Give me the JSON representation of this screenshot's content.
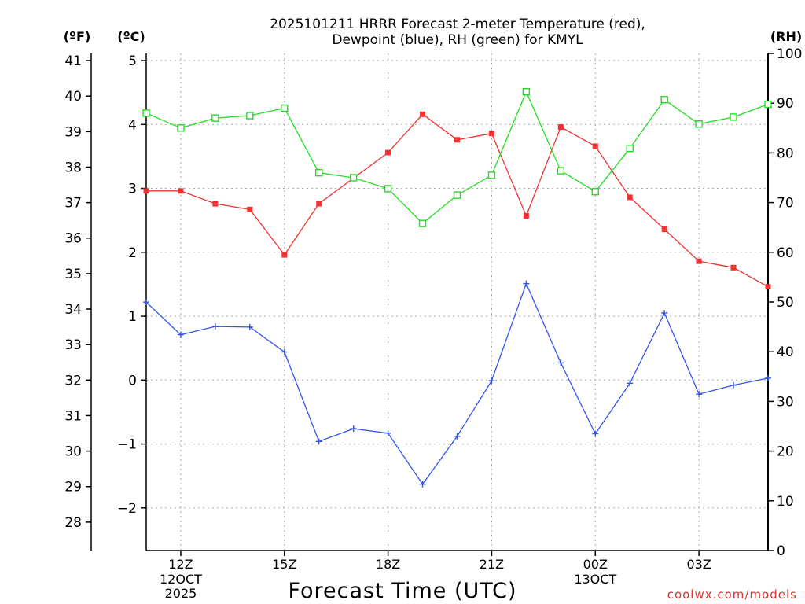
{
  "chart_data": {
    "type": "line",
    "title_line1": "2025101211 HRRR Forecast 2-meter Temperature (red),",
    "title_line2": "Dewpoint (blue), RH (green) for KMYL",
    "xlabel": "Forecast Time (UTC)",
    "footer": "coolwx.com/models",
    "unit_f": "(ºF)",
    "unit_c": "(ºC)",
    "unit_rh": "(RH)",
    "x_hours": [
      11,
      12,
      13,
      14,
      15,
      16,
      17,
      18,
      19,
      20,
      21,
      22,
      23,
      24,
      25,
      26,
      27,
      28,
      29
    ],
    "x_ticks": [
      {
        "hour": 12,
        "label": "12Z",
        "sub1": "12OCT",
        "sub2": "2025"
      },
      {
        "hour": 15,
        "label": "15Z",
        "sub1": "",
        "sub2": ""
      },
      {
        "hour": 18,
        "label": "18Z",
        "sub1": "",
        "sub2": ""
      },
      {
        "hour": 21,
        "label": "21Z",
        "sub1": "",
        "sub2": ""
      },
      {
        "hour": 24,
        "label": "00Z",
        "sub1": "13OCT",
        "sub2": ""
      },
      {
        "hour": 27,
        "label": "03Z",
        "sub1": "",
        "sub2": ""
      }
    ],
    "xlim": [
      11,
      29
    ],
    "ylim_c": [
      -2.6667,
      5.1111
    ],
    "ylim_rh": [
      0,
      100
    ],
    "yticks_c": [
      -2,
      -1,
      0,
      1,
      2,
      3,
      4,
      5
    ],
    "yticks_f": [
      28,
      29,
      30,
      31,
      32,
      33,
      34,
      35,
      36,
      37,
      38,
      39,
      40,
      41
    ],
    "yticks_rh": [
      0,
      10,
      20,
      30,
      40,
      50,
      60,
      70,
      80,
      90,
      100
    ],
    "series": [
      {
        "name": "Temperature",
        "unit": "C",
        "color": "#ee3333",
        "marker": "filled-square",
        "values": [
          2.96,
          2.96,
          2.76,
          2.67,
          1.96,
          2.76,
          3.16,
          3.56,
          4.16,
          3.76,
          3.86,
          2.57,
          3.96,
          3.66,
          2.86,
          2.36,
          1.86,
          1.76,
          1.46
        ]
      },
      {
        "name": "Dewpoint",
        "unit": "C",
        "color": "#3355ee",
        "marker": "plus",
        "values": [
          1.22,
          0.71,
          0.84,
          0.83,
          0.44,
          -0.96,
          -0.76,
          -0.83,
          -1.63,
          -0.88,
          -0.01,
          1.51,
          0.27,
          -0.84,
          -0.05,
          1.05,
          -0.22,
          -0.08,
          0.03
        ]
      },
      {
        "name": "RH",
        "unit": "%",
        "color": "#22dd22",
        "marker": "open-square",
        "values": [
          88,
          85,
          87,
          87.5,
          89,
          76,
          75,
          72.8,
          65.8,
          71.5,
          75.5,
          92.3,
          76.4,
          72.2,
          80.9,
          90.7,
          85.8,
          87.2,
          89.8
        ]
      }
    ]
  }
}
